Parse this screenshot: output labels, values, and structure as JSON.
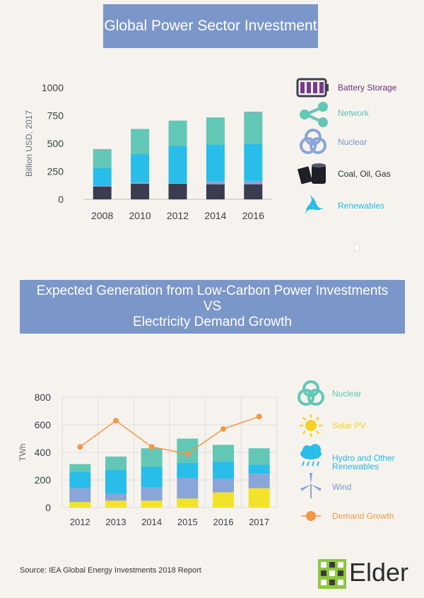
{
  "chart_data": [
    {
      "type": "bar",
      "stacked": true,
      "title": "Global Power Sector Investment",
      "ylabel": "Billion USD, 2017",
      "ylim": [
        0,
        1000
      ],
      "yticks": [
        0,
        250,
        500,
        750,
        1000
      ],
      "categories": [
        "2008",
        "2010",
        "2012",
        "2014",
        "2016"
      ],
      "series": [
        {
          "name": "Coal, Oil, Gas",
          "color": "#3a3d50",
          "values": [
            115,
            140,
            140,
            135,
            135
          ]
        },
        {
          "name": "Nuclear",
          "color": "#8aa5d8",
          "values": [
            5,
            10,
            5,
            25,
            30
          ]
        },
        {
          "name": "Renewables",
          "color": "#29bde9",
          "values": [
            160,
            255,
            335,
            330,
            330
          ]
        },
        {
          "name": "Network",
          "color": "#63c7b6",
          "values": [
            170,
            225,
            225,
            240,
            285
          ]
        },
        {
          "name": "Battery Storage",
          "color": "#7a3a8e",
          "values": [
            0,
            0,
            0,
            2,
            3
          ]
        }
      ],
      "legend": [
        {
          "label": "Battery Storage",
          "icon": "battery-icon",
          "color": "#6b2f83"
        },
        {
          "label": "Network",
          "icon": "network-icon",
          "color": "#5cc6b3"
        },
        {
          "label": "Nuclear",
          "icon": "biohazard-icon",
          "color": "#7b96c9"
        },
        {
          "label": "Coal, Oil, Gas",
          "icon": "barrel-icon",
          "color": "#2b2d38"
        },
        {
          "label": "Renewables",
          "icon": "recycle-icon",
          "color": "#26b8e6"
        }
      ],
      "legend_position": "right"
    },
    {
      "type": "bar",
      "stacked": true,
      "overlay": "line",
      "title_lines": [
        "Expected Generation from Low-Carbon Power Investments",
        "VS",
        "Electricity Demand Growth"
      ],
      "ylabel": "TWh",
      "ylim": [
        0,
        800
      ],
      "yticks": [
        0,
        200,
        400,
        600,
        800
      ],
      "grid": true,
      "categories": [
        "2012",
        "2013",
        "2014",
        "2015",
        "2016",
        "2017"
      ],
      "series": [
        {
          "name": "Solar PV",
          "color": "#f2e32a",
          "values": [
            40,
            50,
            50,
            65,
            110,
            140
          ]
        },
        {
          "name": "Wind",
          "color": "#8aa5d8",
          "values": [
            100,
            50,
            95,
            150,
            100,
            105
          ]
        },
        {
          "name": "Hydro and Other Renewables",
          "color": "#29bde9",
          "values": [
            120,
            175,
            150,
            110,
            125,
            65
          ]
        },
        {
          "name": "Nuclear",
          "color": "#63c7b6",
          "values": [
            55,
            95,
            135,
            175,
            120,
            120
          ]
        }
      ],
      "line": {
        "name": "Demand Growth",
        "color": "#f39746",
        "values": [
          440,
          630,
          440,
          390,
          570,
          660
        ]
      },
      "legend": [
        {
          "label": "Nuclear",
          "icon": "biohazard-icon",
          "color": "#5cc6b3"
        },
        {
          "label": "Solar PV",
          "icon": "sun-icon",
          "color": "#f2d21b"
        },
        {
          "label": "Hydro and Other",
          "label2": "Renewables",
          "icon": "rain-cloud-icon",
          "color": "#26b8e6"
        },
        {
          "label": "Wind",
          "icon": "wind-turbine-icon",
          "color": "#7b96c9"
        },
        {
          "label": "Demand Growth",
          "icon": "line-marker-icon",
          "color": "#f39746"
        }
      ],
      "legend_position": "right"
    }
  ],
  "footer": {
    "source": "Source: IEA Global Energy Investments 2018 Report",
    "logo_text": "Elder"
  }
}
